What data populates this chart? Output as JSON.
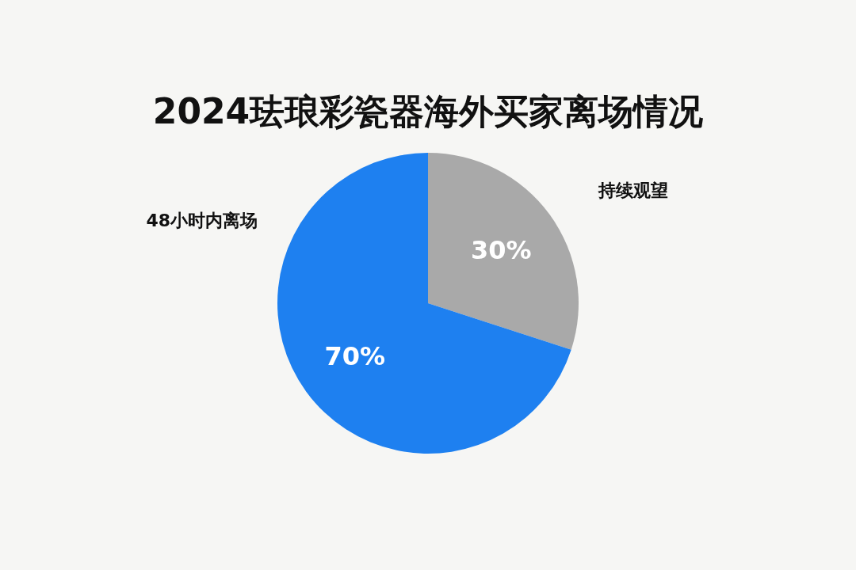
{
  "chart_data": {
    "type": "pie",
    "title": "2024珐琅彩瓷器海外买家离场情况",
    "categories": [
      "持续观望",
      "48小时内离场"
    ],
    "values": [
      30,
      70
    ],
    "colors": [
      "#a9a9a9",
      "#1e80f0"
    ],
    "value_labels": [
      "30%",
      "70%"
    ]
  }
}
